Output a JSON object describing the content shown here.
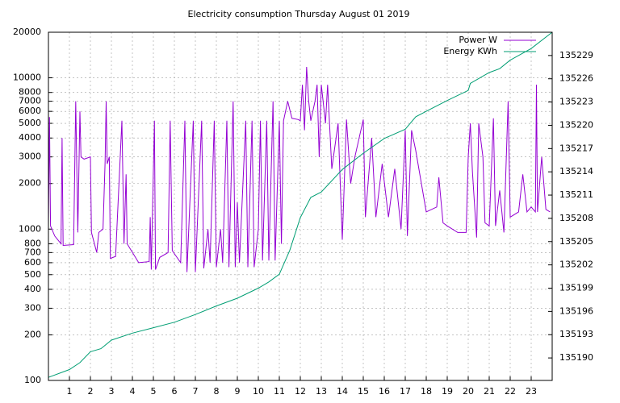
{
  "chart_data": {
    "type": "line",
    "title": "Electricity consumption Thursday August 01 2019",
    "ylog": true,
    "grid": true,
    "legend": "top right",
    "xlim": [
      0,
      24
    ],
    "xticks": [
      1,
      2,
      3,
      4,
      5,
      6,
      7,
      8,
      9,
      10,
      11,
      12,
      13,
      14,
      15,
      16,
      17,
      18,
      19,
      20,
      21,
      22,
      23
    ],
    "ylim": [
      100,
      20000
    ],
    "yticks": [
      100,
      200,
      300,
      400,
      500,
      600,
      700,
      800,
      1000,
      2000,
      3000,
      4000,
      5000,
      6000,
      7000,
      8000,
      10000,
      20000
    ],
    "y2lim": [
      135187.1,
      135232
    ],
    "y2ticks": [
      135190,
      135193,
      135196,
      135199,
      135202,
      135205,
      135208,
      135211,
      135214,
      135217,
      135220,
      135223,
      135226,
      135229
    ],
    "series": [
      {
        "name": "Power W",
        "color": "#9400d3",
        "x": [
          0,
          0.05,
          0.1,
          0.3,
          0.6,
          0.65,
          0.7,
          1.2,
          1.3,
          1.4,
          1.5,
          1.55,
          1.7,
          2.0,
          2.05,
          2.3,
          2.4,
          2.6,
          2.7,
          2.75,
          2.8,
          2.9,
          2.95,
          3.2,
          3.5,
          3.6,
          3.7,
          3.75,
          4.3,
          4.8,
          4.85,
          4.9,
          5.05,
          5.1,
          5.3,
          5.7,
          5.8,
          5.9,
          6.3,
          6.5,
          6.6,
          6.9,
          7.0,
          7.3,
          7.4,
          7.6,
          7.7,
          7.9,
          8.0,
          8.2,
          8.3,
          8.5,
          8.6,
          8.8,
          8.9,
          9.0,
          9.1,
          9.4,
          9.5,
          9.7,
          9.8,
          10.0,
          10.1,
          10.2,
          10.4,
          10.5,
          10.7,
          10.8,
          11.0,
          11.1,
          11.2,
          11.4,
          11.6,
          11.9,
          12.0,
          12.1,
          12.2,
          12.3,
          12.4,
          12.5,
          12.7,
          12.8,
          12.9,
          13.0,
          13.2,
          13.3,
          13.5,
          13.8,
          14.0,
          14.2,
          14.4,
          14.6,
          15.0,
          15.1,
          15.4,
          15.6,
          15.9,
          16.2,
          16.5,
          16.8,
          17.0,
          17.1,
          17.3,
          17.5,
          18.0,
          18.5,
          18.6,
          18.8,
          19.0,
          19.5,
          19.9,
          20.0,
          20.1,
          20.2,
          20.4,
          20.5,
          20.7,
          20.8,
          21.0,
          21.2,
          21.3,
          21.5,
          21.7,
          21.9,
          22.0,
          22.4,
          22.6,
          22.8,
          23.0,
          23.2,
          23.25,
          23.3,
          23.5,
          23.7,
          23.9
        ],
        "values": [
          1050,
          5500,
          1050,
          900,
          800,
          4000,
          780,
          790,
          7000,
          950,
          6000,
          3000,
          2900,
          3000,
          950,
          700,
          950,
          1000,
          2800,
          7000,
          2700,
          3000,
          640,
          660,
          5200,
          800,
          2300,
          800,
          600,
          610,
          1200,
          540,
          5200,
          540,
          650,
          700,
          5200,
          720,
          600,
          5200,
          520,
          5200,
          520,
          5200,
          550,
          1000,
          600,
          5200,
          560,
          1000,
          600,
          5200,
          560,
          7000,
          560,
          1500,
          600,
          5200,
          560,
          5200,
          560,
          1000,
          5200,
          620,
          5200,
          620,
          7000,
          620,
          5200,
          800,
          5200,
          7000,
          5400,
          5300,
          5200,
          9000,
          4500,
          11800,
          7000,
          5200,
          7000,
          9000,
          3000,
          9000,
          5000,
          9000,
          2500,
          5000,
          850,
          5300,
          2000,
          3000,
          5300,
          1200,
          4000,
          1200,
          2700,
          1200,
          2500,
          1000,
          4500,
          900,
          4500,
          3300,
          1300,
          1400,
          2200,
          1100,
          1050,
          950,
          950,
          3000,
          5000,
          2400,
          880,
          5000,
          3000,
          1100,
          1050,
          5400,
          1050,
          1800,
          950,
          7000,
          1200,
          1300,
          2300,
          1300,
          1400,
          1300,
          9000,
          1300,
          3000,
          1350,
          1300
        ]
      },
      {
        "name": "Energy KWh",
        "color": "#009e73",
        "axis": "y2",
        "x": [
          0,
          1,
          1.5,
          2,
          2.5,
          3,
          4,
          5,
          6,
          7,
          8,
          9,
          10,
          10.5,
          11,
          11.5,
          12,
          12.5,
          13,
          14,
          15,
          16,
          17,
          17.5,
          18,
          19,
          20,
          20.1,
          21,
          21.5,
          22,
          23,
          24
        ],
        "values": [
          135187.5,
          135188.5,
          135189.4,
          135190.8,
          135191.2,
          135192.3,
          135193.2,
          135193.9,
          135194.6,
          135195.6,
          135196.7,
          135197.7,
          135199.0,
          135199.8,
          135200.8,
          135203.9,
          135208.1,
          135210.7,
          135211.4,
          135214.3,
          135216.4,
          135218.3,
          135219.5,
          135221.1,
          135221.8,
          135223.2,
          135224.5,
          135225.4,
          135226.8,
          135227.3,
          135228.4,
          135229.9,
          135232.0
        ]
      }
    ]
  }
}
